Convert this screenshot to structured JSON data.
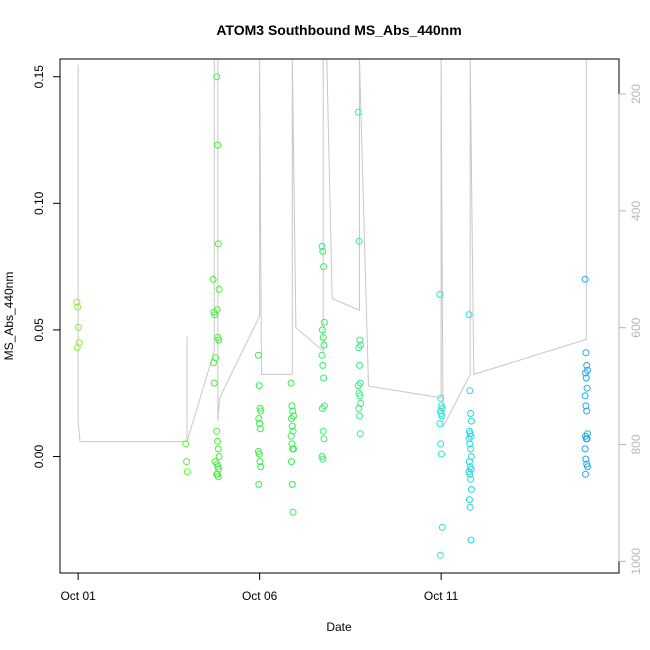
{
  "chart_data": {
    "type": "scatter",
    "title": "ATOM3 Southbound MS_Abs_440nm",
    "xlabel": "Date",
    "ylabel": "MS_Abs_440nm",
    "x_ticks": [
      {
        "day": 1,
        "label": "Oct 01"
      },
      {
        "day": 6,
        "label": "Oct 06"
      },
      {
        "day": 11,
        "label": "Oct 11"
      }
    ],
    "y_ticks": [
      {
        "value": 0.0,
        "label": "0.00"
      },
      {
        "value": 0.05,
        "label": "0.05"
      },
      {
        "value": 0.1,
        "label": "0.10"
      },
      {
        "value": 0.15,
        "label": "0.15"
      }
    ],
    "secondary_y_ticks": [
      {
        "value": 200,
        "label": "200"
      },
      {
        "value": 400,
        "label": "400"
      },
      {
        "value": 600,
        "label": "600"
      },
      {
        "value": 800,
        "label": "800"
      },
      {
        "value": 1000,
        "label": "1000"
      }
    ],
    "xlim_days": [
      0.5,
      15.9
    ],
    "ylim": [
      -0.046,
      0.157
    ],
    "secondary_ylim_reversed": [
      1020,
      140
    ],
    "grid": false,
    "legend": "none",
    "colors": {
      "line": "#c8c8c8",
      "axis": "#000000",
      "secondary_axis": "#b8b8b8"
    },
    "points": [
      {
        "day": 1.0,
        "color": "#8ef03c",
        "y": [
          0.061,
          0.059,
          0.051,
          0.045,
          0.043
        ]
      },
      {
        "day": 4.0,
        "color": "#62f03a",
        "y": [
          0.005,
          -0.002,
          -0.006
        ]
      },
      {
        "day": 4.75,
        "color": "#45f03a",
        "y": [
          0.07,
          0.057,
          0.056,
          0.039,
          0.037,
          0.029,
          -0.002
        ]
      },
      {
        "day": 4.85,
        "color": "#45f03a",
        "y": [
          0.15,
          0.123,
          0.084,
          0.066,
          0.058,
          0.047,
          0.046,
          0.01,
          0.006,
          0.003,
          0.0,
          -0.003,
          -0.004,
          -0.005,
          -0.007,
          -0.007,
          -0.008
        ]
      },
      {
        "day": 6.0,
        "color": "#34f046",
        "y": [
          0.04,
          0.028,
          0.019,
          0.018,
          0.015,
          0.013,
          0.011,
          0.002,
          0.001,
          -0.002,
          -0.004,
          -0.011
        ]
      },
      {
        "day": 6.9,
        "color": "#34f050",
        "y": [
          0.029,
          0.02,
          0.018,
          0.016,
          0.015,
          0.012,
          0.01,
          0.008,
          0.005,
          0.003,
          0.003,
          -0.002,
          -0.011,
          -0.022
        ]
      },
      {
        "day": 7.75,
        "color": "#34f068",
        "y": [
          0.083,
          0.081,
          0.075,
          0.053,
          0.05,
          0.047,
          0.044,
          0.04,
          0.036,
          0.031,
          0.02,
          0.019,
          0.01,
          0.007,
          0.0,
          -0.001
        ]
      },
      {
        "day": 8.75,
        "color": "#34f080",
        "y": [
          0.136,
          0.085,
          0.046,
          0.044,
          0.043,
          0.036,
          0.029,
          0.028,
          0.025,
          0.024,
          0.021,
          0.019,
          0.016,
          0.009
        ]
      },
      {
        "day": 11.0,
        "color": "#28e8d8",
        "y": [
          0.064,
          0.023,
          0.02,
          0.019,
          0.018,
          0.017,
          0.016,
          0.013,
          0.005,
          0.001,
          -0.028,
          -0.039
        ]
      },
      {
        "day": 11.8,
        "color": "#24d8e8",
        "y": [
          0.056,
          0.026,
          0.017,
          0.014,
          0.01,
          0.009,
          0.008,
          0.007,
          0.005,
          0.003,
          0.0,
          -0.002,
          -0.004,
          -0.005,
          -0.006,
          -0.007,
          -0.009,
          -0.013,
          -0.017,
          -0.02,
          -0.033
        ]
      },
      {
        "day": 15.0,
        "color": "#20a8f0",
        "y": [
          0.07,
          0.041,
          0.036,
          0.034,
          0.033,
          0.031,
          0.027,
          0.024,
          0.02,
          0.018,
          0.009,
          0.008,
          0.007,
          0.007,
          0.003,
          -0.001,
          -0.003,
          -0.004,
          -0.007
        ]
      }
    ],
    "altitude_track": [
      [
        1.0,
        150
      ],
      [
        1.0,
        760
      ],
      [
        1.05,
        795
      ],
      [
        4.0,
        795
      ],
      [
        4.0,
        615
      ],
      [
        4.0,
        795
      ],
      [
        4.75,
        640
      ],
      [
        4.75,
        140
      ],
      [
        4.85,
        140
      ],
      [
        4.85,
        760
      ],
      [
        4.9,
        720
      ],
      [
        6.0,
        580
      ],
      [
        6.0,
        140
      ],
      [
        6.05,
        680
      ],
      [
        6.9,
        680
      ],
      [
        6.9,
        140
      ],
      [
        7.0,
        600
      ],
      [
        7.75,
        640
      ],
      [
        7.75,
        140
      ],
      [
        7.85,
        140
      ],
      [
        8.0,
        550
      ],
      [
        8.75,
        570
      ],
      [
        8.75,
        140
      ],
      [
        9.0,
        700
      ],
      [
        11.0,
        720
      ],
      [
        11.0,
        140
      ],
      [
        11.05,
        770
      ],
      [
        11.8,
        680
      ],
      [
        11.8,
        140
      ],
      [
        11.9,
        680
      ],
      [
        15.0,
        620
      ],
      [
        15.0,
        140
      ]
    ]
  }
}
